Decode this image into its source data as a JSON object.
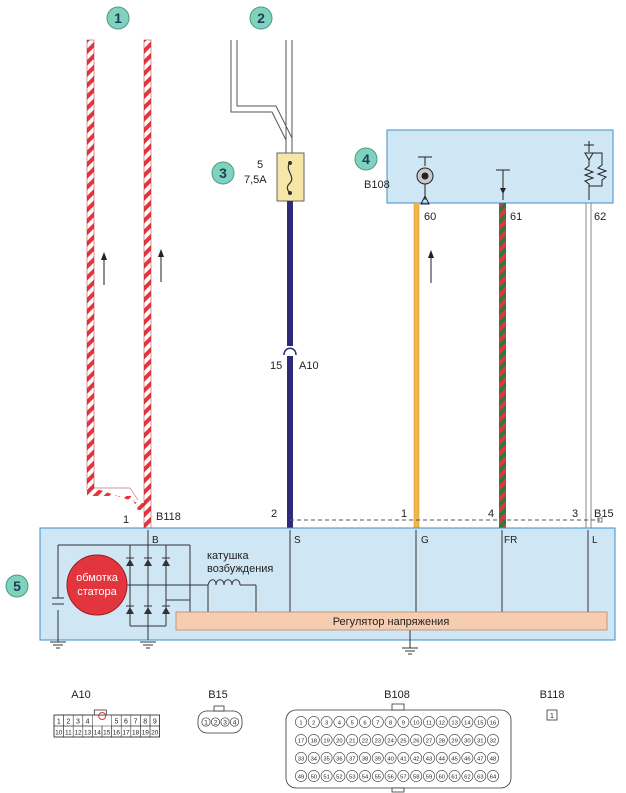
{
  "callouts": [
    "1",
    "2",
    "3",
    "4",
    "5"
  ],
  "fuse": {
    "number": "5",
    "rating": "7,5A"
  },
  "connectors": {
    "a10": "A10",
    "b15": "B15",
    "b108": "B108",
    "b118": "B118"
  },
  "wire_pins": {
    "b_terminal": "1",
    "s_in": "2",
    "g_in": "1",
    "fr_in": "4",
    "l_in": "3",
    "a10_pin": "15",
    "ecu_60": "60",
    "ecu_61": "61",
    "ecu_62": "62"
  },
  "alternator": {
    "terminal_b": "B",
    "terminal_s": "S",
    "terminal_g": "G",
    "terminal_fr": "FR",
    "terminal_l": "L",
    "stator_line1": "обмотка",
    "stator_line2": "статора",
    "field_line1": "катушка",
    "field_line2": "возбуждения",
    "regulator": "Регулятор напряжения"
  },
  "a10_pins_top": [
    "1",
    "2",
    "3",
    "4",
    "5",
    "6",
    "7",
    "8",
    "9"
  ],
  "a10_pins_bottom": [
    "10",
    "11",
    "12",
    "13",
    "14",
    "15",
    "16",
    "17",
    "18",
    "19",
    "20"
  ],
  "b15_pins": [
    "1",
    "2",
    "3",
    "4"
  ],
  "b108_rows": [
    [
      "1",
      "2",
      "3",
      "4",
      "5",
      "6",
      "7",
      "8",
      "9",
      "10",
      "11",
      "12",
      "13",
      "14",
      "15",
      "16"
    ],
    [
      "17",
      "18",
      "19",
      "20",
      "21",
      "22",
      "23",
      "24",
      "25",
      "26",
      "27",
      "28",
      "29",
      "30",
      "31",
      "32"
    ],
    [
      "33",
      "34",
      "35",
      "36",
      "37",
      "38",
      "39",
      "40",
      "41",
      "42",
      "43",
      "44",
      "45",
      "46",
      "47",
      "48"
    ],
    [
      "49",
      "50",
      "51",
      "52",
      "53",
      "54",
      "55",
      "56",
      "57",
      "58",
      "59",
      "60",
      "61",
      "62",
      "63",
      "64"
    ]
  ],
  "b118_pin": "1",
  "colors": {
    "red": "#e2353d",
    "navy": "#2d2a7a",
    "yellow": "#f0b84a",
    "box_fill": "#cfe6f4",
    "box_stroke": "#3f8fc4",
    "callout_fill": "#7fd3bd",
    "regulator_fill": "#f6cdb1"
  }
}
